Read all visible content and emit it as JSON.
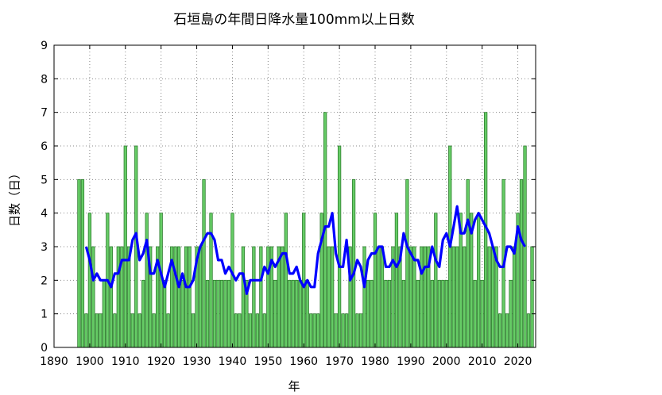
{
  "chart_data": {
    "type": "bar",
    "title": "石垣島の年間日降水量100mm以上日数",
    "xlabel": "年",
    "ylabel": "日数（日）",
    "xlim": [
      1890,
      2025
    ],
    "ylim": [
      0,
      9
    ],
    "x_ticks": [
      "1890",
      "1900",
      "1910",
      "1920",
      "1930",
      "1940",
      "1950",
      "1960",
      "1970",
      "1980",
      "1990",
      "2000",
      "2010",
      "2020"
    ],
    "y_ticks": [
      "0",
      "1",
      "2",
      "3",
      "4",
      "5",
      "6",
      "7",
      "8",
      "9"
    ],
    "grid": true,
    "legend": "none",
    "bar_color": "#66cc66",
    "bar_edge_color": "#2e7d2e",
    "line_color": "#0000ff",
    "years": [
      1897,
      1898,
      1899,
      1900,
      1901,
      1902,
      1903,
      1904,
      1905,
      1906,
      1907,
      1908,
      1909,
      1910,
      1911,
      1912,
      1913,
      1914,
      1915,
      1916,
      1917,
      1918,
      1919,
      1920,
      1921,
      1922,
      1923,
      1924,
      1925,
      1926,
      1927,
      1928,
      1929,
      1930,
      1931,
      1932,
      1933,
      1934,
      1935,
      1936,
      1937,
      1938,
      1939,
      1940,
      1941,
      1942,
      1943,
      1944,
      1945,
      1946,
      1947,
      1948,
      1949,
      1950,
      1951,
      1952,
      1953,
      1954,
      1955,
      1956,
      1957,
      1958,
      1959,
      1960,
      1961,
      1962,
      1963,
      1964,
      1965,
      1966,
      1967,
      1968,
      1969,
      1970,
      1971,
      1972,
      1973,
      1974,
      1975,
      1976,
      1977,
      1978,
      1979,
      1980,
      1981,
      1982,
      1983,
      1984,
      1985,
      1986,
      1987,
      1988,
      1989,
      1990,
      1991,
      1992,
      1993,
      1994,
      1995,
      1996,
      1997,
      1998,
      1999,
      2000,
      2001,
      2002,
      2003,
      2004,
      2005,
      2006,
      2007,
      2008,
      2009,
      2010,
      2011,
      2012,
      2013,
      2014,
      2015,
      2016,
      2017,
      2018,
      2019,
      2020,
      2021,
      2022,
      2023,
      2024
    ],
    "series": [
      {
        "values": [
          5,
          5,
          1,
          4,
          3,
          1,
          1,
          2,
          4,
          3,
          1,
          3,
          3,
          6,
          3,
          1,
          6,
          1,
          2,
          4,
          3,
          1,
          3,
          4,
          2,
          1,
          3,
          3,
          3,
          2,
          3,
          3,
          1,
          3,
          3,
          5,
          2,
          4,
          2,
          2,
          2,
          2,
          2,
          4,
          1,
          1,
          3,
          2,
          1,
          3,
          1,
          3,
          1,
          3,
          3,
          2,
          3,
          3,
          4,
          2,
          2,
          2,
          2,
          4,
          2,
          1,
          1,
          1,
          4,
          7,
          3,
          3,
          1,
          6,
          1,
          1,
          3,
          5,
          1,
          1,
          3,
          2,
          2,
          4,
          3,
          3,
          2,
          2,
          3,
          4,
          3,
          2,
          5,
          3,
          3,
          2,
          3,
          3,
          3,
          2,
          4,
          2,
          2,
          2,
          6,
          3,
          3,
          4,
          3,
          5,
          4,
          2,
          4,
          2,
          7,
          3,
          3,
          3,
          1,
          5,
          1,
          2,
          3,
          4,
          5,
          6,
          1,
          3
        ]
      },
      {
        "type": "line",
        "x": [
          1899,
          1900,
          1901,
          1902,
          1903,
          1904,
          1905,
          1906,
          1907,
          1908,
          1909,
          1910,
          1911,
          1912,
          1913,
          1914,
          1915,
          1916,
          1917,
          1918,
          1919,
          1920,
          1921,
          1922,
          1923,
          1924,
          1925,
          1926,
          1927,
          1928,
          1929,
          1930,
          1931,
          1932,
          1933,
          1934,
          1935,
          1936,
          1937,
          1938,
          1939,
          1940,
          1941,
          1942,
          1943,
          1944,
          1945,
          1946,
          1947,
          1948,
          1949,
          1950,
          1951,
          1952,
          1953,
          1954,
          1955,
          1956,
          1957,
          1958,
          1959,
          1960,
          1961,
          1962,
          1963,
          1964,
          1965,
          1966,
          1967,
          1968,
          1969,
          1970,
          1971,
          1972,
          1973,
          1974,
          1975,
          1976,
          1977,
          1978,
          1979,
          1980,
          1981,
          1982,
          1983,
          1984,
          1985,
          1986,
          1987,
          1988,
          1989,
          1990,
          1991,
          1992,
          1993,
          1994,
          1995,
          1996,
          1997,
          1998,
          1999,
          2000,
          2001,
          2002,
          2003,
          2004,
          2005,
          2006,
          2007,
          2008,
          2009,
          2010,
          2011,
          2012,
          2013,
          2014,
          2015,
          2016,
          2017,
          2018,
          2019,
          2020,
          2021,
          2022
        ],
        "values": [
          3.0,
          2.6,
          2.0,
          2.2,
          2.0,
          2.0,
          2.0,
          1.8,
          2.2,
          2.2,
          2.6,
          2.6,
          2.6,
          3.2,
          3.4,
          2.6,
          2.8,
          3.2,
          2.2,
          2.2,
          2.6,
          2.2,
          1.8,
          2.2,
          2.6,
          2.2,
          1.8,
          2.2,
          1.8,
          1.8,
          2.0,
          2.6,
          3.0,
          3.2,
          3.4,
          3.4,
          3.2,
          2.6,
          2.6,
          2.2,
          2.4,
          2.2,
          2.0,
          2.2,
          2.2,
          1.6,
          2.0,
          2.0,
          2.0,
          2.0,
          2.4,
          2.2,
          2.6,
          2.4,
          2.6,
          2.8,
          2.8,
          2.2,
          2.2,
          2.4,
          2.0,
          1.8,
          2.0,
          1.8,
          1.8,
          2.8,
          3.2,
          3.6,
          3.6,
          4.0,
          2.8,
          2.4,
          2.4,
          3.2,
          2.0,
          2.2,
          2.6,
          2.4,
          1.8,
          2.6,
          2.8,
          2.8,
          3.0,
          3.0,
          2.4,
          2.4,
          2.6,
          2.4,
          2.6,
          3.4,
          3.0,
          2.8,
          2.6,
          2.6,
          2.2,
          2.4,
          2.4,
          3.0,
          2.6,
          2.4,
          3.2,
          3.4,
          3.0,
          3.6,
          4.2,
          3.4,
          3.4,
          3.8,
          3.4,
          3.8,
          4.0,
          3.8,
          3.6,
          3.4,
          3.0,
          2.6,
          2.4,
          2.4,
          3.0,
          3.0,
          2.8,
          3.6,
          3.2,
          3.0
        ]
      }
    ]
  }
}
